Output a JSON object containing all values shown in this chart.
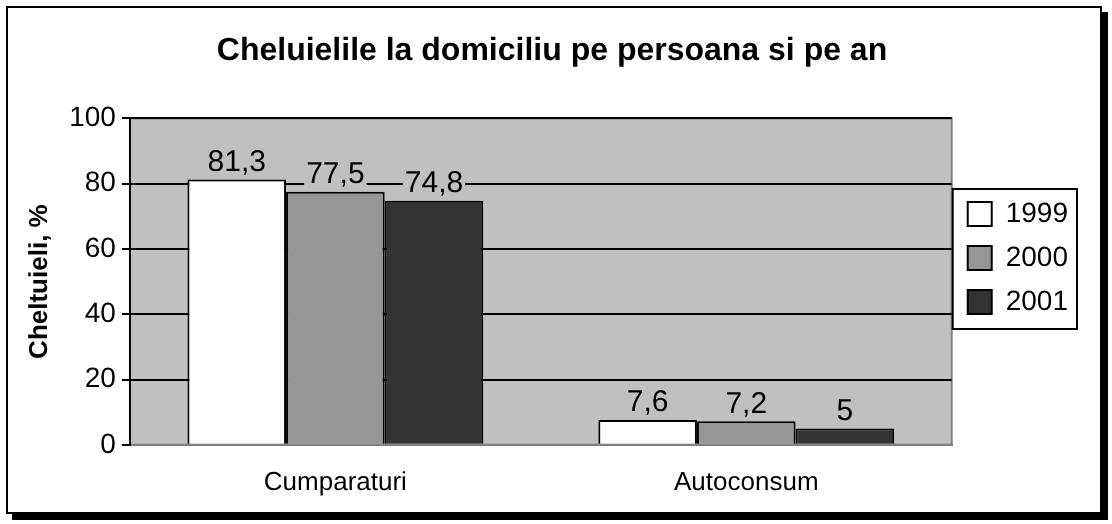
{
  "chart_data": {
    "type": "bar",
    "title": "Cheluielile la domiciliu pe persoana si pe an",
    "ylabel": "Cheltuieli, %",
    "categories": [
      "Cumparaturi",
      "Autoconsum"
    ],
    "series": [
      {
        "name": "1999",
        "color": "#ffffff",
        "values": [
          81.3,
          7.6
        ],
        "value_labels": [
          "81,3",
          "7,6"
        ]
      },
      {
        "name": "2000",
        "color": "#969696",
        "values": [
          77.5,
          7.2
        ],
        "value_labels": [
          "77,5",
          "7,2"
        ]
      },
      {
        "name": "2001",
        "color": "#333333",
        "values": [
          74.8,
          5
        ],
        "value_labels": [
          "74,8",
          "5"
        ]
      }
    ],
    "ylim": [
      0,
      100
    ],
    "yticks": [
      0,
      20,
      40,
      60,
      80,
      100
    ],
    "grid": "y",
    "legend": "right"
  }
}
